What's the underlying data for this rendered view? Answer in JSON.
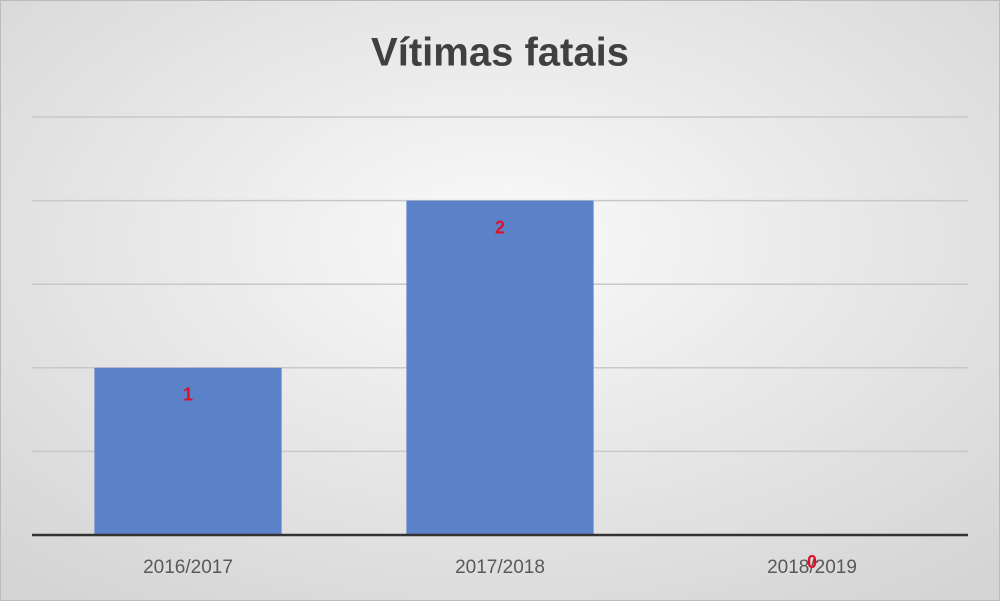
{
  "chart_data": {
    "type": "bar",
    "title": "Vítimas fatais",
    "categories": [
      "2016/2017",
      "2017/2018",
      "2018/2019"
    ],
    "values": [
      1,
      2,
      0
    ],
    "color": "#5b82c8",
    "label_color": "#e0102a",
    "ylim": [
      0,
      2.5
    ],
    "yticks": [
      0,
      0.5,
      1,
      1.5,
      2,
      2.5
    ],
    "grid": true
  }
}
